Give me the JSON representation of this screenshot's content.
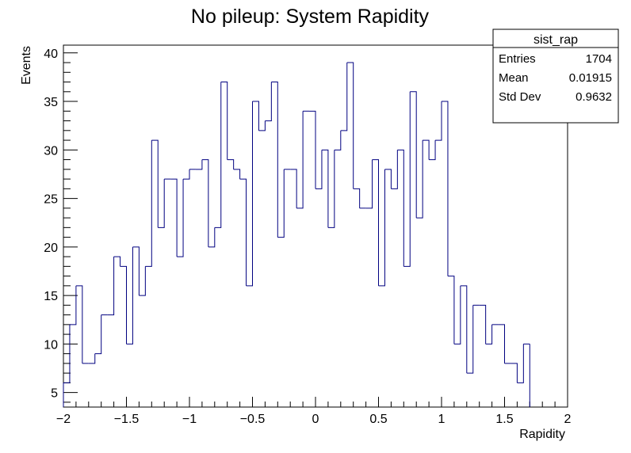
{
  "chart_data": {
    "type": "histogram",
    "title": "No pileup:  System Rapidity",
    "xlabel": "Rapidity",
    "ylabel": "Events",
    "xlim": [
      -2,
      2
    ],
    "ylim": [
      3.5,
      40.8
    ],
    "x_ticks": [
      -2,
      -1.5,
      -1,
      -0.5,
      0,
      0.5,
      1,
      1.5,
      2
    ],
    "x_tick_labels": [
      "−2",
      "−1.5",
      "−1",
      "−0.5",
      "0",
      "0.5",
      "1",
      "1.5",
      "2"
    ],
    "y_ticks": [
      5,
      10,
      15,
      20,
      25,
      30,
      35,
      40
    ],
    "y_tick_labels": [
      "5",
      "10",
      "15",
      "20",
      "25",
      "30",
      "35",
      "40"
    ],
    "bin_edges_low": -2,
    "bin_width": 0.05,
    "values": [
      6,
      12,
      16,
      8,
      8,
      9,
      13,
      13,
      19,
      18,
      10,
      20,
      15,
      18,
      31,
      22,
      27,
      27,
      19,
      27,
      28,
      28,
      29,
      20,
      22,
      37,
      29,
      28,
      27,
      16,
      35,
      32,
      33,
      37,
      21,
      28,
      28,
      24,
      34,
      34,
      26,
      30,
      22,
      30,
      32,
      39,
      26,
      24,
      24,
      29,
      16,
      28,
      26,
      30,
      18,
      36,
      23,
      31,
      29,
      31,
      35,
      17,
      10,
      16,
      7,
      14,
      14,
      10,
      12,
      12,
      8,
      8,
      6,
      10
    ],
    "line_color": "#000080",
    "stats_box": {
      "name": "sist_rap",
      "rows": [
        {
          "label": "Entries",
          "value": "1704"
        },
        {
          "label": "Mean",
          "value": "0.01915"
        },
        {
          "label": "Std Dev",
          "value": "0.9632"
        }
      ]
    }
  }
}
